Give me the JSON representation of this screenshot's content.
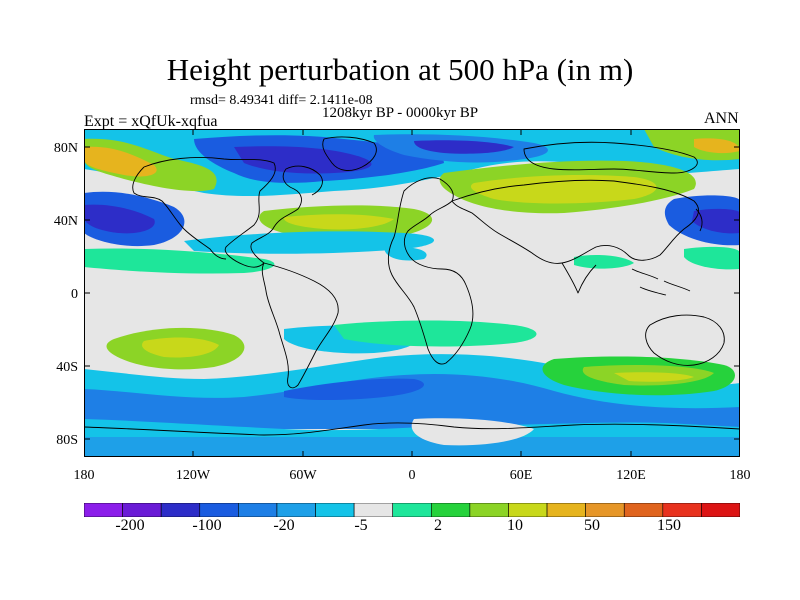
{
  "title": "Height perturbation at 500 hPa (in m)",
  "stats": "rmsd= 8.49341 diff= 2.1411e-08",
  "period": "1208kyr BP - 0000kyr BP",
  "experiment": "Expt = xQfUk-xqfua",
  "season": "ANN",
  "map": {
    "lon_range": [
      -180,
      180
    ],
    "lat_range": [
      -90,
      90
    ],
    "lat_ticks": [
      "80N",
      "40N",
      "0",
      "40S",
      "80S"
    ],
    "lon_ticks": [
      "180",
      "120W",
      "60W",
      "0",
      "60E",
      "120E",
      "180"
    ]
  },
  "colorbar": {
    "colors": [
      "#8c1eea",
      "#6a1bd6",
      "#2d2dc8",
      "#1a5ce0",
      "#1e7fe6",
      "#1ea0e8",
      "#14c3e8",
      "#e6e6e6",
      "#1ee69a",
      "#26d23c",
      "#8cd426",
      "#c8d81a",
      "#e6b41e",
      "#e69628",
      "#e0641e",
      "#e8321e",
      "#dc1414"
    ],
    "labels": [
      "-200",
      "-100",
      "-20",
      "-5",
      "2",
      "10",
      "50",
      "150"
    ]
  },
  "field_colors": {
    "missing": "#e6e6e6",
    "coastline": "#000000"
  }
}
